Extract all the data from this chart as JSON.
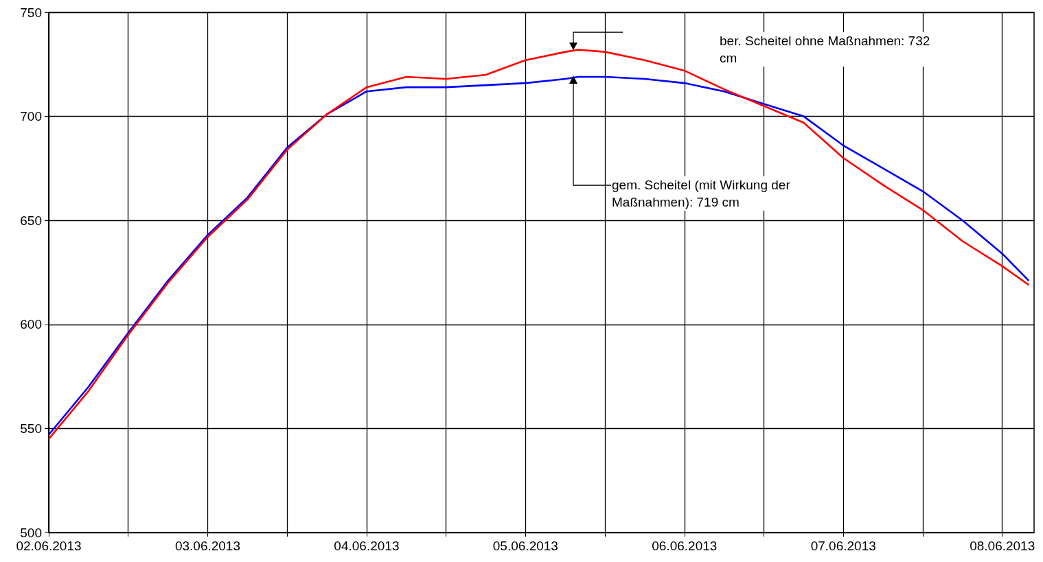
{
  "chart_data": {
    "type": "line",
    "x": [
      "2013-06-02T00:00",
      "2013-06-02T06:00",
      "2013-06-02T12:00",
      "2013-06-02T18:00",
      "2013-06-03T00:00",
      "2013-06-03T06:00",
      "2013-06-03T12:00",
      "2013-06-03T18:00",
      "2013-06-04T00:00",
      "2013-06-04T06:00",
      "2013-06-04T12:00",
      "2013-06-04T18:00",
      "2013-06-05T00:00",
      "2013-06-05T06:00",
      "2013-06-05T08:00",
      "2013-06-05T12:00",
      "2013-06-05T18:00",
      "2013-06-06T00:00",
      "2013-06-06T06:00",
      "2013-06-06T12:00",
      "2013-06-06T18:00",
      "2013-06-07T00:00",
      "2013-06-07T06:00",
      "2013-06-07T12:00",
      "2013-06-07T18:00",
      "2013-06-08T00:00",
      "2013-06-08T04:00"
    ],
    "series": [
      {
        "color": "#0000ff",
        "values": [
          547,
          570,
          596,
          621,
          643,
          661,
          685,
          701,
          712,
          714,
          714,
          715,
          716,
          718,
          719,
          719,
          718,
          716,
          712,
          706,
          700,
          686,
          675,
          664,
          650,
          634,
          621
        ]
      },
      {
        "color": "#ff0000",
        "values": [
          545,
          568,
          595,
          620,
          642,
          660,
          684,
          701,
          714,
          719,
          718,
          720,
          727,
          731,
          732,
          731,
          727,
          722,
          713,
          705,
          697,
          680,
          667,
          655,
          640,
          628,
          619
        ]
      }
    ],
    "xlim": [
      "2013-06-02T00:00",
      "2013-06-08T04:48"
    ],
    "xticks": [
      {
        "value": "2013-06-02T00:00",
        "label": "02.06.2013"
      },
      {
        "value": "2013-06-02T12:00",
        "label": null
      },
      {
        "value": "2013-06-03T00:00",
        "label": "03.06.2013"
      },
      {
        "value": "2013-06-03T12:00",
        "label": null
      },
      {
        "value": "2013-06-04T00:00",
        "label": "04.06.2013"
      },
      {
        "value": "2013-06-04T12:00",
        "label": null
      },
      {
        "value": "2013-06-05T00:00",
        "label": "05.06.2013"
      },
      {
        "value": "2013-06-05T12:00",
        "label": null
      },
      {
        "value": "2013-06-06T00:00",
        "label": "06.06.2013"
      },
      {
        "value": "2013-06-06T12:00",
        "label": null
      },
      {
        "value": "2013-06-07T00:00",
        "label": "07.06.2013"
      },
      {
        "value": "2013-06-07T12:00",
        "label": null
      },
      {
        "value": "2013-06-08T00:00",
        "label": "08.06.2013"
      }
    ],
    "ylim": [
      500,
      750
    ],
    "yticks": [
      500,
      550,
      600,
      650,
      700,
      750
    ],
    "grid": true,
    "marker": "none",
    "annotations": [
      "ber. Scheitel ohne Maßnahmen: 732 cm",
      "gem. Scheitel (mit Wirkung der Maßnahmen): 719 cm"
    ]
  }
}
